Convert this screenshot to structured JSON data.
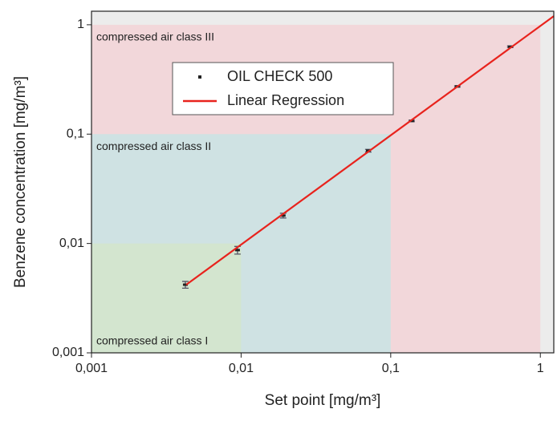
{
  "chart_data": {
    "type": "scatter",
    "x_label": "Set point [mg/m³]",
    "y_label": "Benzene concentration [mg/m³]",
    "x_scale": "log",
    "y_scale": "log",
    "xlim": [
      0.001,
      1.23
    ],
    "ylim": [
      0.001,
      1.33
    ],
    "xticks": [
      {
        "value": 0.001,
        "label": "0,001"
      },
      {
        "value": 0.01,
        "label": "0,01"
      },
      {
        "value": 0.1,
        "label": "0,1"
      },
      1
    ],
    "yticks": [
      {
        "value": 0.001,
        "label": "0,001"
      },
      {
        "value": 0.01,
        "label": "0,01"
      },
      {
        "value": 0.1,
        "label": "0,1"
      },
      1
    ],
    "background": "#ececec",
    "regions": [
      {
        "label": "compressed air class III",
        "xlim": [
          0.001,
          1
        ],
        "ylim": [
          0.001,
          1
        ],
        "color": "#f2d7da",
        "label_corner": "top"
      },
      {
        "label": "compressed air class II",
        "xlim": [
          0.001,
          0.1
        ],
        "ylim": [
          0.001,
          0.1
        ],
        "color": "#cfe2e3",
        "label_corner": "top"
      },
      {
        "label": "compressed air class I",
        "xlim": [
          0.001,
          0.01
        ],
        "ylim": [
          0.001,
          0.01
        ],
        "color": "#d3e5cf",
        "label_corner": "bottom"
      }
    ],
    "series": [
      {
        "name": "OIL CHECK 500",
        "kind": "scatter",
        "color": "#222222",
        "x": [
          0.00424,
          0.00946,
          0.0191,
          0.0708,
          0.138,
          0.279,
          0.63
        ],
        "values": [
          0.0042,
          0.0087,
          0.018,
          0.0706,
          0.132,
          0.273,
          0.63
        ],
        "errors": [
          0.0003,
          0.0007,
          0.0009,
          0.002,
          0.002,
          0.004,
          0.01
        ]
      },
      {
        "name": "Linear Regression",
        "kind": "line",
        "color": "#e8231d",
        "x": [
          0.0043,
          1.23
        ],
        "values": [
          0.0042,
          1.2
        ]
      }
    ],
    "legend": "upper left"
  }
}
